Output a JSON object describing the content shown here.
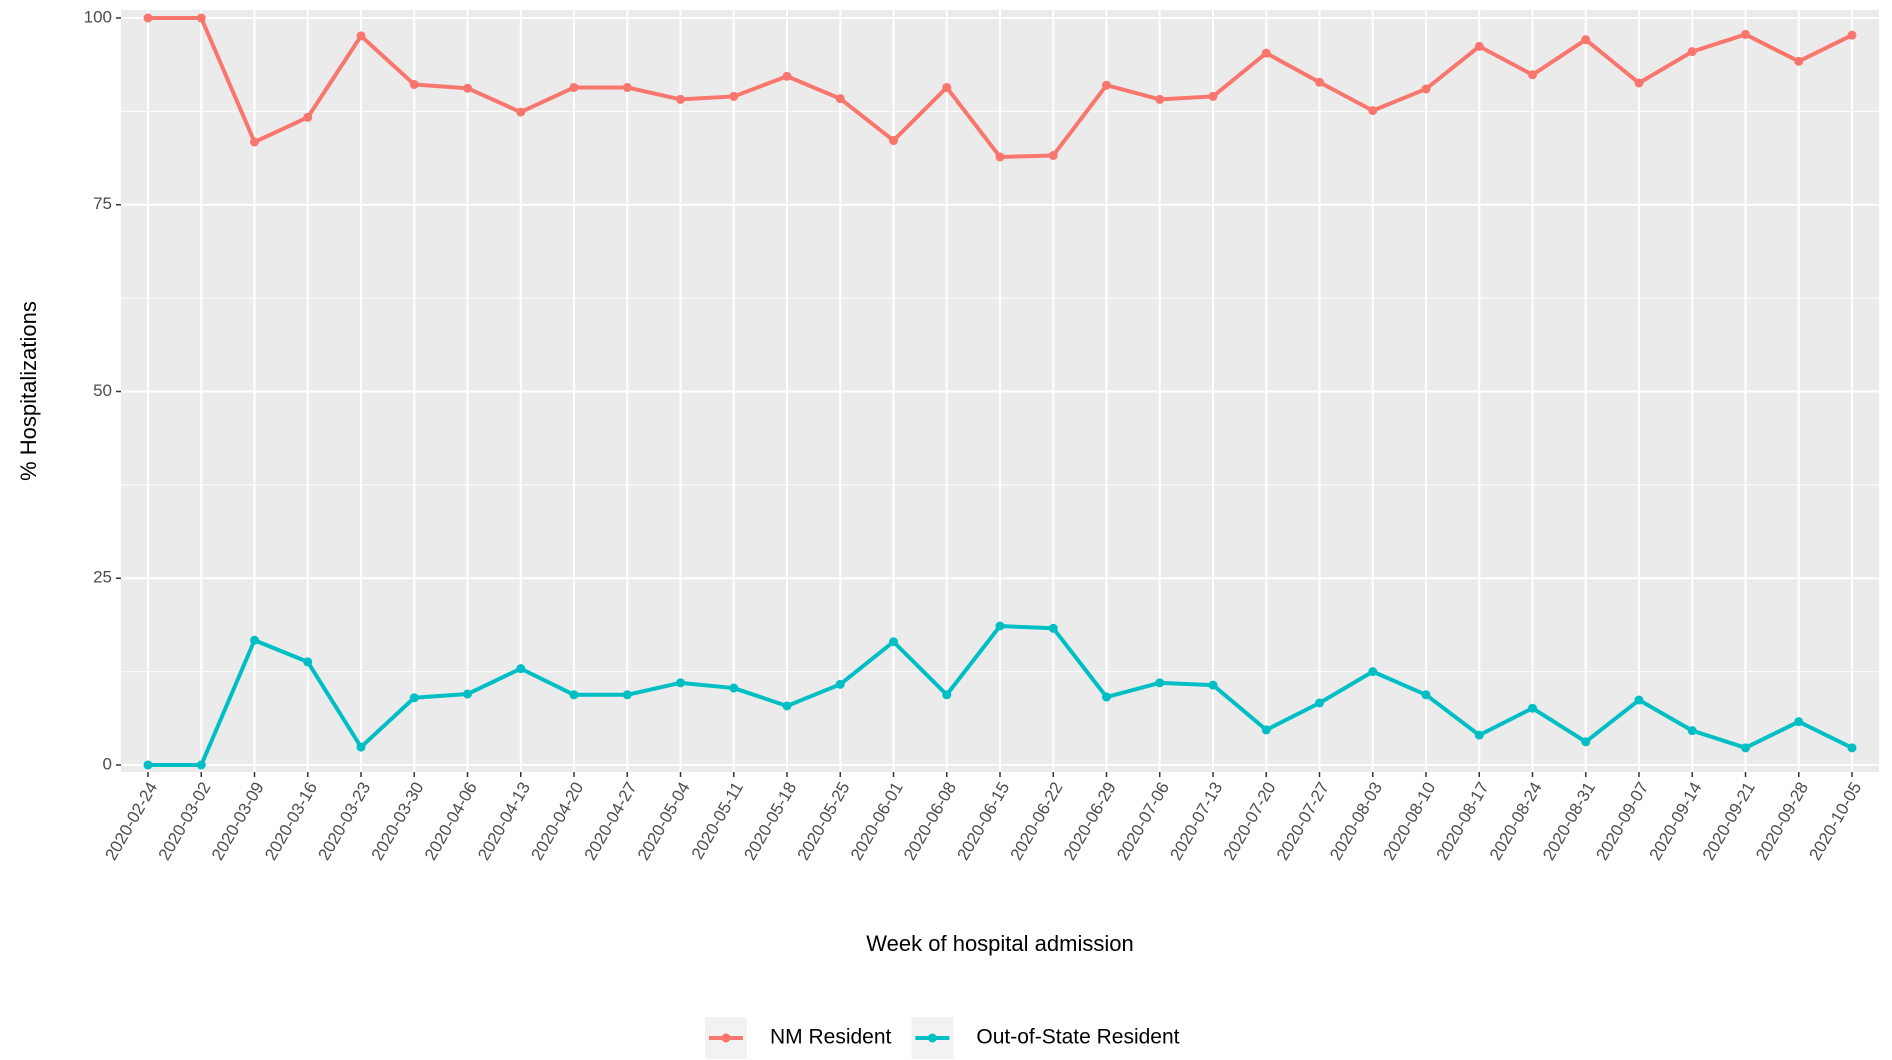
{
  "chart_data": {
    "type": "line",
    "x_label": "Week of hospital admission",
    "y_label": "% Hospitalizations",
    "categories": [
      "2020-02-24",
      "2020-03-02",
      "2020-03-09",
      "2020-03-16",
      "2020-03-23",
      "2020-03-30",
      "2020-04-06",
      "2020-04-13",
      "2020-04-20",
      "2020-04-27",
      "2020-05-04",
      "2020-05-11",
      "2020-05-18",
      "2020-05-25",
      "2020-06-01",
      "2020-06-08",
      "2020-06-15",
      "2020-06-22",
      "2020-06-29",
      "2020-07-06",
      "2020-07-13",
      "2020-07-20",
      "2020-07-27",
      "2020-08-03",
      "2020-08-10",
      "2020-08-17",
      "2020-08-24",
      "2020-08-31",
      "2020-09-07",
      "2020-09-14",
      "2020-09-21",
      "2020-09-28",
      "2020-10-05"
    ],
    "series": [
      {
        "name": "NM Resident",
        "color": "#F8766D",
        "values": [
          100,
          100,
          83.4,
          86.7,
          97.6,
          91.1,
          90.6,
          87.4,
          90.7,
          90.7,
          89.1,
          89.5,
          92.2,
          89.2,
          83.6,
          90.7,
          81.4,
          81.6,
          91.0,
          89.1,
          89.5,
          95.3,
          91.4,
          87.6,
          90.5,
          96.2,
          92.4,
          97.1,
          91.3,
          95.5,
          97.8,
          94.2,
          97.7
        ]
      },
      {
        "name": "Out-of-State Resident",
        "color": "#00BFC4",
        "values": [
          0,
          0,
          16.7,
          13.8,
          2.4,
          9.0,
          9.5,
          12.9,
          9.4,
          9.4,
          11.0,
          10.3,
          7.9,
          10.8,
          16.5,
          9.4,
          18.6,
          18.3,
          9.1,
          11.0,
          10.7,
          4.7,
          8.3,
          12.5,
          9.4,
          4.0,
          7.6,
          3.1,
          8.7,
          4.6,
          2.3,
          5.8,
          2.3
        ]
      }
    ],
    "ylim": [
      0,
      100
    ],
    "yticks": [
      0,
      25,
      50,
      75,
      100
    ],
    "grid": true,
    "legend": "bottom"
  }
}
